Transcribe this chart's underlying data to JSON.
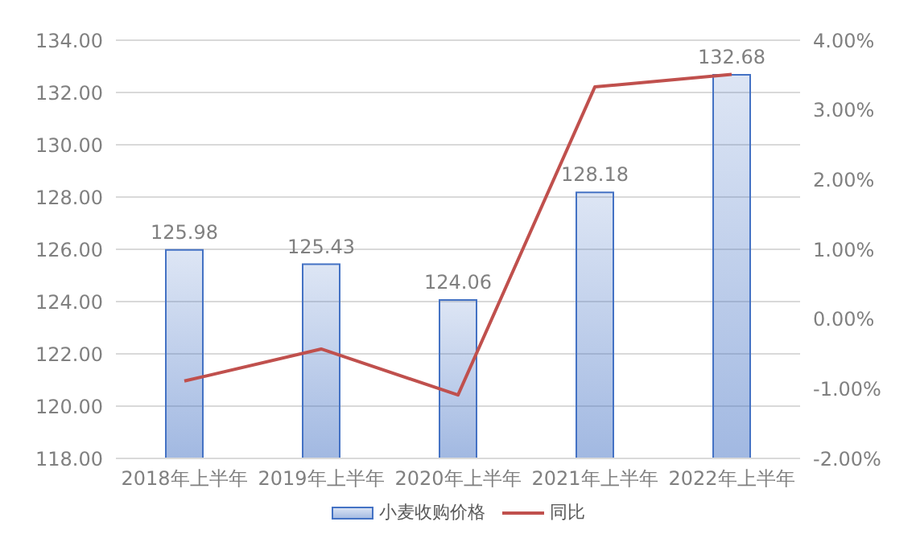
{
  "chart_data": {
    "type": "bar",
    "categories": [
      "2018年上半年",
      "2019年上半年",
      "2020年上半年",
      "2021年上半年",
      "2022年上半年"
    ],
    "series": [
      {
        "name": "小麦收购价格",
        "color": "#4472c4",
        "values": [
          125.98,
          125.43,
          124.06,
          128.18,
          132.68
        ],
        "value_labels": [
          "125.98",
          "125.43",
          "124.06",
          "128.18",
          "132.68"
        ]
      },
      {
        "name": "同比",
        "type": "line",
        "axis": "y2",
        "color": "#c0504d",
        "values": [
          -0.89,
          -0.43,
          -1.09,
          3.33,
          3.51
        ]
      }
    ],
    "ylim": [
      118,
      134
    ],
    "yticks": [
      {
        "value": 118,
        "label": "118.00"
      },
      {
        "value": 120,
        "label": "120.00"
      },
      {
        "value": 122,
        "label": "122.00"
      },
      {
        "value": 124,
        "label": "124.00"
      },
      {
        "value": 126,
        "label": "126.00"
      },
      {
        "value": 128,
        "label": "128.00"
      },
      {
        "value": 130,
        "label": "130.00"
      },
      {
        "value": 132,
        "label": "132.00"
      },
      {
        "value": 134,
        "label": "134.00"
      }
    ],
    "y2lim": [
      -2,
      4
    ],
    "y2ticks": [
      {
        "value": -2,
        "label": "-2.00%"
      },
      {
        "value": -1,
        "label": "-1.00%"
      },
      {
        "value": 0,
        "label": "0.00%"
      },
      {
        "value": 1,
        "label": "1.00%"
      },
      {
        "value": 2,
        "label": "2.00%"
      },
      {
        "value": 3,
        "label": "3.00%"
      },
      {
        "value": 4,
        "label": "4.00%"
      }
    ],
    "grid": "y",
    "legend": "bottom",
    "marker": "none"
  }
}
